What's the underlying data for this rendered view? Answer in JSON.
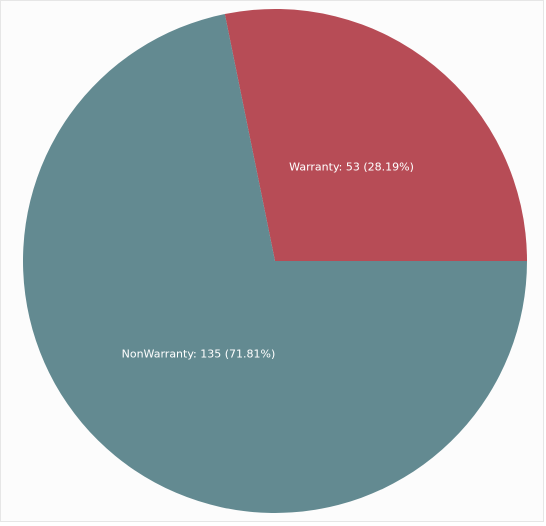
{
  "chart_data": {
    "type": "pie",
    "slices": [
      {
        "name": "Warranty",
        "value": 53,
        "percent": 28.19,
        "color": "#b74c56",
        "label": "Warranty: 53 (28.19%)"
      },
      {
        "name": "NonWarranty",
        "value": 135,
        "percent": 71.81,
        "color": "#638a91",
        "label": "NonWarranty: 135 (71.81%)"
      }
    ],
    "start": "right (3 o'clock)",
    "direction": "counterclockwise"
  }
}
